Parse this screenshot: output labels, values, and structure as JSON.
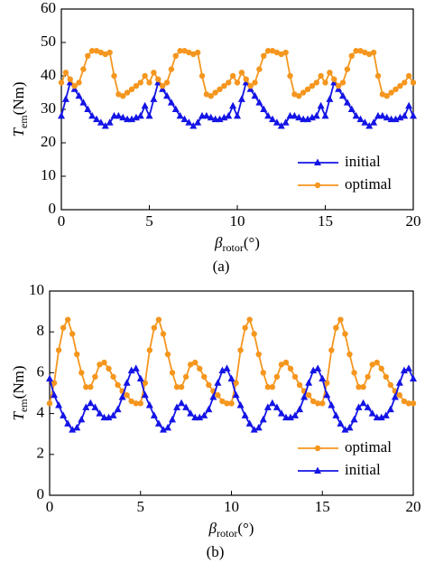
{
  "chart_data": [
    {
      "type": "line",
      "caption": "(a)",
      "y_label": {
        "main": "T",
        "sub": "em",
        "unit": "(Nm)"
      },
      "x_label": {
        "main": "β",
        "sub": "rotor",
        "unit": "(°)"
      },
      "xlim": [
        0,
        20
      ],
      "xticks": [
        0,
        5,
        10,
        15,
        20
      ],
      "ylim": [
        0,
        60
      ],
      "yticks": [
        0,
        10,
        20,
        30,
        40,
        50,
        60
      ],
      "legend": "lower right",
      "x": [
        0,
        0.25,
        0.5,
        0.75,
        1,
        1.25,
        1.5,
        1.75,
        2,
        2.25,
        2.5,
        2.75,
        3,
        3.25,
        3.5,
        3.75,
        4,
        4.25,
        4.5,
        4.75,
        5,
        5.25,
        5.5,
        5.75,
        6,
        6.25,
        6.5,
        6.75,
        7,
        7.25,
        7.5,
        7.75,
        8,
        8.25,
        8.5,
        8.75,
        9,
        9.25,
        9.5,
        9.75,
        10,
        10.25,
        10.5,
        10.75,
        11,
        11.25,
        11.5,
        11.75,
        12,
        12.25,
        12.5,
        12.75,
        13,
        13.25,
        13.5,
        13.75,
        14,
        14.25,
        14.5,
        14.75,
        15,
        15.25,
        15.5,
        15.75,
        16,
        16.25,
        16.5,
        16.75,
        17,
        17.25,
        17.5,
        17.75,
        18,
        18.25,
        18.5,
        18.75,
        19,
        19.25,
        19.5,
        19.75,
        20
      ],
      "series": [
        {
          "name": "initial",
          "color": "#1414e6",
          "marker": "triangle",
          "values": [
            28,
            33,
            38,
            36,
            34,
            32,
            30,
            28,
            27,
            26,
            25,
            26,
            28,
            28,
            27.5,
            27,
            27,
            27.5,
            28,
            31,
            28,
            33,
            38,
            36,
            34,
            32,
            30,
            28,
            27,
            26,
            25,
            26,
            28,
            28,
            27.5,
            27,
            27,
            27.5,
            28,
            31,
            28,
            33,
            38,
            36,
            34,
            32,
            30,
            28,
            27,
            26,
            25,
            26,
            28,
            28,
            27.5,
            27,
            27,
            27.5,
            28,
            31,
            28,
            33,
            38,
            36,
            34,
            32,
            30,
            28,
            27,
            26,
            25,
            26,
            28,
            28,
            27.5,
            27,
            27,
            27.5,
            28,
            31,
            28
          ]
        },
        {
          "name": "optimal",
          "color": "#f5961e",
          "marker": "circle",
          "values": [
            38,
            41,
            39,
            37,
            38,
            42,
            46,
            47.5,
            47.5,
            47,
            46.5,
            47,
            40,
            34.5,
            34,
            35,
            36,
            37,
            38,
            40,
            38,
            41,
            39,
            37,
            38,
            42,
            46,
            47.5,
            47.5,
            47,
            46.5,
            47,
            40,
            34.5,
            34,
            35,
            36,
            37,
            38,
            40,
            38,
            41,
            39,
            37,
            38,
            42,
            46,
            47.5,
            47.5,
            47,
            46.5,
            47,
            40,
            34.5,
            34,
            35,
            36,
            37,
            38,
            40,
            38,
            41,
            39,
            37,
            38,
            42,
            46,
            47.5,
            47.5,
            47,
            46.5,
            47,
            40,
            34.5,
            34,
            35,
            36,
            37,
            38,
            40,
            38
          ]
        }
      ]
    },
    {
      "type": "line",
      "caption": "(b)",
      "y_label": {
        "main": "T",
        "sub": "em",
        "unit": "(Nm)"
      },
      "x_label": {
        "main": "β",
        "sub": "rotor",
        "unit": "(°)"
      },
      "xlim": [
        0,
        20
      ],
      "xticks": [
        0,
        5,
        10,
        15,
        20
      ],
      "ylim": [
        0,
        10
      ],
      "yticks": [
        0,
        2,
        4,
        6,
        8,
        10
      ],
      "legend": "lower right",
      "x": [
        0,
        0.25,
        0.5,
        0.75,
        1,
        1.25,
        1.5,
        1.75,
        2,
        2.25,
        2.5,
        2.75,
        3,
        3.25,
        3.5,
        3.75,
        4,
        4.25,
        4.5,
        4.75,
        5,
        5.25,
        5.5,
        5.75,
        6,
        6.25,
        6.5,
        6.75,
        7,
        7.25,
        7.5,
        7.75,
        8,
        8.25,
        8.5,
        8.75,
        9,
        9.25,
        9.5,
        9.75,
        10,
        10.25,
        10.5,
        10.75,
        11,
        11.25,
        11.5,
        11.75,
        12,
        12.25,
        12.5,
        12.75,
        13,
        13.25,
        13.5,
        13.75,
        14,
        14.25,
        14.5,
        14.75,
        15,
        15.25,
        15.5,
        15.75,
        16,
        16.25,
        16.5,
        16.75,
        17,
        17.25,
        17.5,
        17.75,
        18,
        18.25,
        18.5,
        18.75,
        19,
        19.25,
        19.5,
        19.75,
        20
      ],
      "series": [
        {
          "name": "optimal",
          "color": "#f5961e",
          "marker": "circle",
          "values": [
            4.5,
            5.5,
            7.1,
            8.2,
            8.6,
            7.9,
            6.9,
            6.0,
            5.3,
            5.3,
            5.8,
            6.4,
            6.5,
            6.2,
            5.8,
            5.4,
            5.1,
            4.9,
            4.6,
            4.5,
            4.5,
            5.5,
            7.1,
            8.2,
            8.6,
            7.9,
            6.9,
            6.0,
            5.3,
            5.3,
            5.8,
            6.4,
            6.5,
            6.2,
            5.8,
            5.4,
            5.1,
            4.9,
            4.6,
            4.5,
            4.5,
            5.5,
            7.1,
            8.2,
            8.6,
            7.9,
            6.9,
            6.0,
            5.3,
            5.3,
            5.8,
            6.4,
            6.5,
            6.2,
            5.8,
            5.4,
            5.1,
            4.9,
            4.6,
            4.5,
            4.5,
            5.5,
            7.1,
            8.2,
            8.6,
            7.9,
            6.9,
            6.0,
            5.3,
            5.3,
            5.8,
            6.4,
            6.5,
            6.2,
            5.8,
            5.4,
            5.1,
            4.9,
            4.6,
            4.5,
            4.5
          ]
        },
        {
          "name": "initial",
          "color": "#1414e6",
          "marker": "triangle",
          "values": [
            5.7,
            4.9,
            4.4,
            3.9,
            3.5,
            3.2,
            3.3,
            3.7,
            4.3,
            4.5,
            4.3,
            4.0,
            3.8,
            3.8,
            3.9,
            4.2,
            4.8,
            5.5,
            6.1,
            6.2,
            5.7,
            4.9,
            4.4,
            3.9,
            3.5,
            3.2,
            3.3,
            3.7,
            4.3,
            4.5,
            4.3,
            4.0,
            3.8,
            3.8,
            3.9,
            4.2,
            4.8,
            5.5,
            6.1,
            6.2,
            5.7,
            4.9,
            4.4,
            3.9,
            3.5,
            3.2,
            3.3,
            3.7,
            4.3,
            4.5,
            4.3,
            4.0,
            3.8,
            3.8,
            3.9,
            4.2,
            4.8,
            5.5,
            6.1,
            6.2,
            5.7,
            4.9,
            4.4,
            3.9,
            3.5,
            3.2,
            3.3,
            3.7,
            4.3,
            4.5,
            4.3,
            4.0,
            3.8,
            3.8,
            3.9,
            4.2,
            4.8,
            5.5,
            6.1,
            6.2,
            5.7
          ]
        }
      ]
    }
  ]
}
